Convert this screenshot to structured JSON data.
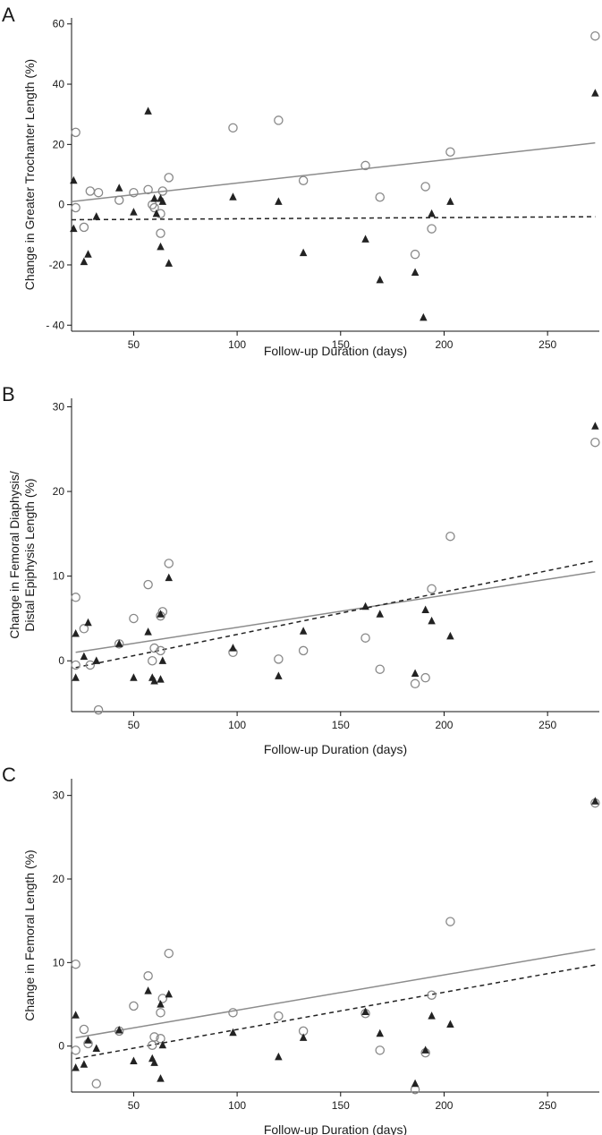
{
  "colors": {
    "open_circle": "#888888",
    "triangle": "#222222",
    "solid_line": "#8c8c8c",
    "dashed_line": "#222222"
  },
  "chart_data": [
    {
      "panel": "A",
      "type": "scatter",
      "xlabel": "Follow-up Duration (days)",
      "ylabel": "Change in Greater Trochanter Length (%)",
      "xlim": [
        20,
        275
      ],
      "ylim": [
        -42,
        62
      ],
      "xticks": [
        50,
        100,
        150,
        200,
        250
      ],
      "yticks": [
        -40,
        -20,
        0,
        20,
        40,
        60
      ],
      "ytick_labels": [
        "- 40",
        "-20",
        "0",
        "20",
        "40",
        "60"
      ],
      "series": [
        {
          "marker": "open-circle",
          "points": [
            [
              22,
              24
            ],
            [
              22,
              -1
            ],
            [
              26,
              -7.5
            ],
            [
              29,
              4.5
            ],
            [
              33,
              4
            ],
            [
              43,
              1.5
            ],
            [
              50,
              4
            ],
            [
              57,
              5
            ],
            [
              59,
              0
            ],
            [
              60,
              -1
            ],
            [
              63,
              -3
            ],
            [
              63,
              -9.5
            ],
            [
              64,
              4.5
            ],
            [
              67,
              9
            ],
            [
              98,
              25.5
            ],
            [
              120,
              28
            ],
            [
              132,
              8
            ],
            [
              162,
              13
            ],
            [
              169,
              2.5
            ],
            [
              186,
              -16.5
            ],
            [
              191,
              6
            ],
            [
              194,
              -8
            ],
            [
              203,
              17.5
            ],
            [
              273,
              56
            ]
          ]
        },
        {
          "marker": "filled-triangle",
          "points": [
            [
              21,
              8
            ],
            [
              21,
              -8
            ],
            [
              26,
              -19
            ],
            [
              28,
              -16.5
            ],
            [
              32,
              -4
            ],
            [
              43,
              5.5
            ],
            [
              50,
              -2.5
            ],
            [
              57,
              31
            ],
            [
              60,
              2
            ],
            [
              61,
              -3
            ],
            [
              63,
              2
            ],
            [
              63,
              -14
            ],
            [
              64,
              1
            ],
            [
              67,
              -19.5
            ],
            [
              98,
              2.5
            ],
            [
              120,
              1
            ],
            [
              132,
              -16
            ],
            [
              162,
              -11.5
            ],
            [
              169,
              -25
            ],
            [
              186,
              -22.5
            ],
            [
              190,
              -37.5
            ],
            [
              194,
              -3
            ],
            [
              203,
              1
            ],
            [
              273,
              37
            ]
          ]
        }
      ],
      "fit_lines": [
        {
          "style": "solid",
          "from": [
            20,
            1
          ],
          "to": [
            273,
            20.5
          ]
        },
        {
          "style": "dashed",
          "from": [
            20,
            -5
          ],
          "to": [
            273,
            -4
          ]
        }
      ]
    },
    {
      "panel": "B",
      "type": "scatter",
      "xlabel": "Follow-up Duration (days)",
      "ylabel": "Change in Femoral Diaphysis/ Distal Epiphysis Length (%)",
      "ylabel_lines": [
        "Change in Femoral Diaphysis/",
        "Distal Epiphysis Length (%)"
      ],
      "xlim": [
        20,
        275
      ],
      "ylim": [
        -6,
        31
      ],
      "xticks": [
        50,
        100,
        150,
        200,
        250
      ],
      "yticks": [
        0,
        10,
        20,
        30
      ],
      "ytick_labels": [
        "0",
        "10",
        "20",
        "30"
      ],
      "series": [
        {
          "marker": "open-circle",
          "points": [
            [
              22,
              7.5
            ],
            [
              22,
              -0.5
            ],
            [
              26,
              3.8
            ],
            [
              29,
              -0.5
            ],
            [
              33,
              -5.8
            ],
            [
              43,
              2
            ],
            [
              50,
              5
            ],
            [
              57,
              9
            ],
            [
              59,
              0
            ],
            [
              60,
              1.5
            ],
            [
              63,
              1.2
            ],
            [
              63,
              5.3
            ],
            [
              64,
              5.8
            ],
            [
              67,
              11.5
            ],
            [
              98,
              1
            ],
            [
              120,
              0.2
            ],
            [
              132,
              1.2
            ],
            [
              162,
              2.7
            ],
            [
              169,
              -1
            ],
            [
              186,
              -2.7
            ],
            [
              191,
              -2
            ],
            [
              194,
              8.5
            ],
            [
              203,
              14.7
            ],
            [
              273,
              25.8
            ]
          ]
        },
        {
          "marker": "filled-triangle",
          "points": [
            [
              22,
              3.2
            ],
            [
              22,
              -2
            ],
            [
              26,
              0.5
            ],
            [
              28,
              4.5
            ],
            [
              32,
              0
            ],
            [
              43,
              2
            ],
            [
              50,
              -2
            ],
            [
              57,
              3.4
            ],
            [
              59,
              -2
            ],
            [
              60,
              -2.4
            ],
            [
              63,
              -2.2
            ],
            [
              63,
              5.5
            ],
            [
              64,
              0
            ],
            [
              67,
              9.8
            ],
            [
              98,
              1.5
            ],
            [
              120,
              -1.8
            ],
            [
              132,
              3.5
            ],
            [
              162,
              6.4
            ],
            [
              169,
              5.5
            ],
            [
              186,
              -1.5
            ],
            [
              191,
              6
            ],
            [
              194,
              4.7
            ],
            [
              203,
              2.9
            ],
            [
              273,
              27.7
            ]
          ]
        }
      ],
      "fit_lines": [
        {
          "style": "solid",
          "from": [
            22,
            1
          ],
          "to": [
            273,
            10.5
          ]
        },
        {
          "style": "dashed",
          "from": [
            22,
            -0.8
          ],
          "to": [
            273,
            11.8
          ]
        }
      ]
    },
    {
      "panel": "C",
      "type": "scatter",
      "xlabel": "Follow-up Duration (days)",
      "ylabel": "Change in Femoral Length (%)",
      "xlim": [
        20,
        275
      ],
      "ylim": [
        -5.5,
        32
      ],
      "xticks": [
        50,
        100,
        150,
        200,
        250
      ],
      "yticks": [
        0,
        10,
        20,
        30
      ],
      "ytick_labels": [
        "0",
        "10",
        "20",
        "30"
      ],
      "series": [
        {
          "marker": "open-circle",
          "points": [
            [
              22,
              9.8
            ],
            [
              22,
              -0.5
            ],
            [
              26,
              2
            ],
            [
              28,
              0.3
            ],
            [
              32,
              -4.5
            ],
            [
              43,
              1.8
            ],
            [
              50,
              4.8
            ],
            [
              57,
              8.4
            ],
            [
              59,
              0.1
            ],
            [
              60,
              1.1
            ],
            [
              63,
              0.9
            ],
            [
              63,
              4
            ],
            [
              64,
              5.7
            ],
            [
              67,
              11.1
            ],
            [
              98,
              4
            ],
            [
              120,
              3.6
            ],
            [
              132,
              1.8
            ],
            [
              162,
              3.9
            ],
            [
              169,
              -0.5
            ],
            [
              186,
              -5.2
            ],
            [
              191,
              -0.8
            ],
            [
              194,
              6.1
            ],
            [
              203,
              14.9
            ],
            [
              273,
              29.1
            ]
          ]
        },
        {
          "marker": "filled-triangle",
          "points": [
            [
              22,
              3.7
            ],
            [
              22,
              -2.6
            ],
            [
              26,
              -2.2
            ],
            [
              28,
              0.7
            ],
            [
              32,
              -0.3
            ],
            [
              43,
              1.9
            ],
            [
              50,
              -1.8
            ],
            [
              57,
              6.6
            ],
            [
              59,
              -1.5
            ],
            [
              60,
              -2
            ],
            [
              63,
              5
            ],
            [
              63,
              -3.9
            ],
            [
              64,
              0.1
            ],
            [
              67,
              6.2
            ],
            [
              98,
              1.6
            ],
            [
              120,
              -1.3
            ],
            [
              132,
              1
            ],
            [
              162,
              4.1
            ],
            [
              169,
              1.5
            ],
            [
              186,
              -4.5
            ],
            [
              191,
              -0.5
            ],
            [
              194,
              3.6
            ],
            [
              203,
              2.6
            ],
            [
              273,
              29.3
            ]
          ]
        }
      ],
      "fit_lines": [
        {
          "style": "solid",
          "from": [
            22,
            1
          ],
          "to": [
            273,
            11.6
          ]
        },
        {
          "style": "dashed",
          "from": [
            22,
            -1.5
          ],
          "to": [
            273,
            9.7
          ]
        }
      ]
    }
  ],
  "panels": [
    {
      "label": "A"
    },
    {
      "label": "B"
    },
    {
      "label": "C"
    }
  ]
}
